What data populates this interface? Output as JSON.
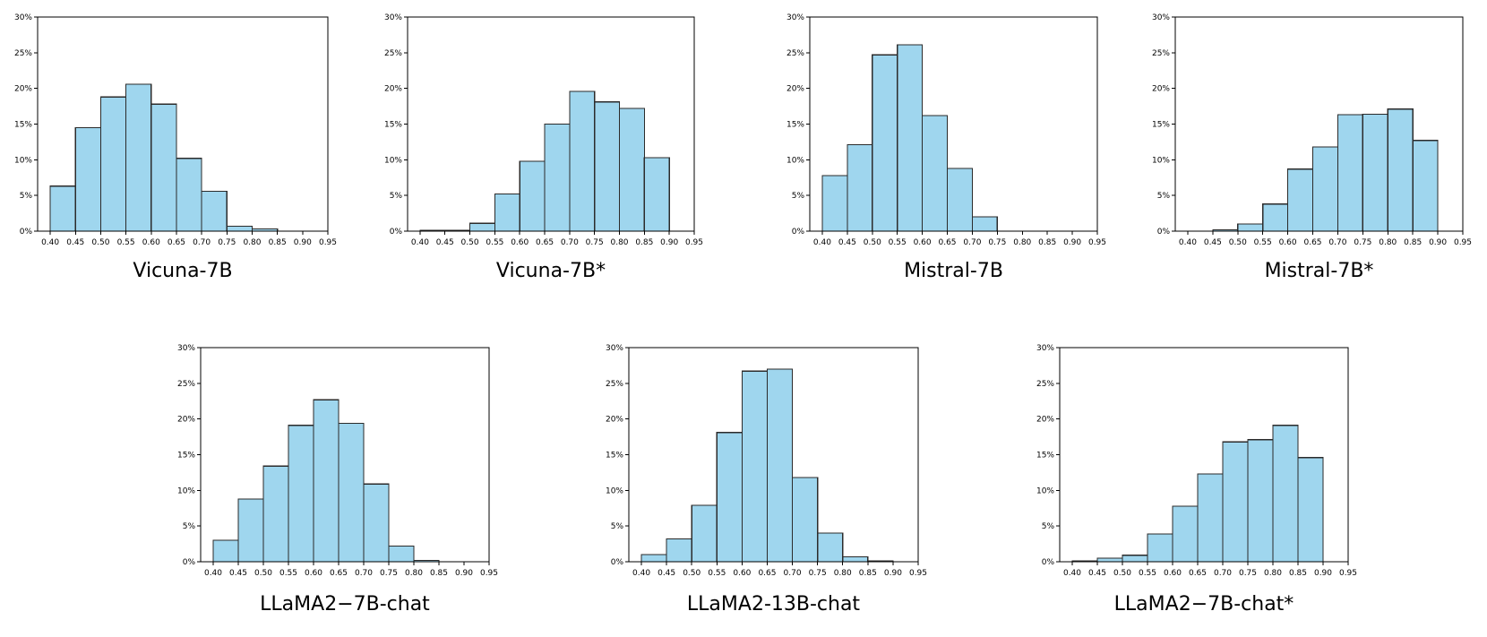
{
  "chart_data": [
    {
      "type": "bar",
      "title": "Vicuna-7B",
      "categories": [
        "0.40-0.45",
        "0.45-0.50",
        "0.50-0.55",
        "0.55-0.60",
        "0.60-0.65",
        "0.65-0.70",
        "0.70-0.75",
        "0.75-0.80",
        "0.80-0.85",
        "0.85-0.90"
      ],
      "values": [
        6.3,
        14.5,
        18.8,
        20.6,
        17.8,
        10.2,
        5.6,
        0.7,
        0.3,
        0.0
      ],
      "xticks": [
        "0.40",
        "0.45",
        "0.50",
        "0.55",
        "0.60",
        "0.65",
        "0.70",
        "0.75",
        "0.80",
        "0.85",
        "0.90",
        "0.95"
      ],
      "yticks": [
        "0%",
        "5%",
        "10%",
        "15%",
        "20%",
        "25%",
        "30%"
      ],
      "xlim": [
        0.375,
        0.95
      ],
      "ylim": [
        0,
        30
      ],
      "xlabel": "",
      "ylabel": ""
    },
    {
      "type": "bar",
      "title": "Vicuna-7B*",
      "categories": [
        "0.40-0.45",
        "0.45-0.50",
        "0.50-0.55",
        "0.55-0.60",
        "0.60-0.65",
        "0.65-0.70",
        "0.70-0.75",
        "0.75-0.80",
        "0.80-0.85",
        "0.85-0.90"
      ],
      "values": [
        0.1,
        0.1,
        1.1,
        5.2,
        9.8,
        15.0,
        19.6,
        18.1,
        17.2,
        10.3
      ],
      "xticks": [
        "0.40",
        "0.45",
        "0.50",
        "0.55",
        "0.60",
        "0.65",
        "0.70",
        "0.75",
        "0.80",
        "0.85",
        "0.90",
        "0.95"
      ],
      "yticks": [
        "0%",
        "5%",
        "10%",
        "15%",
        "20%",
        "25%",
        "30%"
      ],
      "xlim": [
        0.375,
        0.95
      ],
      "ylim": [
        0,
        30
      ],
      "xlabel": "",
      "ylabel": ""
    },
    {
      "type": "bar",
      "title": "Mistral-7B",
      "categories": [
        "0.40-0.45",
        "0.45-0.50",
        "0.50-0.55",
        "0.55-0.60",
        "0.60-0.65",
        "0.65-0.70",
        "0.70-0.75",
        "0.75-0.80",
        "0.80-0.85",
        "0.85-0.90"
      ],
      "values": [
        7.8,
        12.1,
        24.7,
        26.1,
        16.2,
        8.8,
        2.0,
        0.0,
        0.0,
        0.0
      ],
      "xticks": [
        "0.40",
        "0.45",
        "0.50",
        "0.55",
        "0.60",
        "0.65",
        "0.70",
        "0.75",
        "0.80",
        "0.85",
        "0.90",
        "0.95"
      ],
      "yticks": [
        "0%",
        "5%",
        "10%",
        "15%",
        "20%",
        "25%",
        "30%"
      ],
      "xlim": [
        0.375,
        0.95
      ],
      "ylim": [
        0,
        30
      ],
      "xlabel": "",
      "ylabel": ""
    },
    {
      "type": "bar",
      "title": "Mistral-7B*",
      "categories": [
        "0.40-0.45",
        "0.45-0.50",
        "0.50-0.55",
        "0.55-0.60",
        "0.60-0.65",
        "0.65-0.70",
        "0.70-0.75",
        "0.75-0.80",
        "0.80-0.85",
        "0.85-0.90"
      ],
      "values": [
        0.0,
        0.2,
        1.0,
        3.8,
        8.7,
        11.8,
        16.3,
        16.4,
        17.1,
        12.7
      ],
      "xticks": [
        "0.40",
        "0.45",
        "0.50",
        "0.55",
        "0.60",
        "0.65",
        "0.70",
        "0.75",
        "0.80",
        "0.85",
        "0.90",
        "0.95"
      ],
      "yticks": [
        "0%",
        "5%",
        "10%",
        "15%",
        "20%",
        "25%",
        "30%"
      ],
      "xlim": [
        0.375,
        0.95
      ],
      "ylim": [
        0,
        30
      ],
      "xlabel": "",
      "ylabel": ""
    },
    {
      "type": "bar",
      "title": "LLaMA2−7B-chat",
      "categories": [
        "0.40-0.45",
        "0.45-0.50",
        "0.50-0.55",
        "0.55-0.60",
        "0.60-0.65",
        "0.65-0.70",
        "0.70-0.75",
        "0.75-0.80",
        "0.80-0.85",
        "0.85-0.90"
      ],
      "values": [
        3.0,
        8.8,
        13.4,
        19.1,
        22.7,
        19.4,
        10.9,
        2.2,
        0.2,
        0.0
      ],
      "xticks": [
        "0.40",
        "0.45",
        "0.50",
        "0.55",
        "0.60",
        "0.65",
        "0.70",
        "0.75",
        "0.80",
        "0.85",
        "0.90",
        "0.95"
      ],
      "yticks": [
        "0%",
        "5%",
        "10%",
        "15%",
        "20%",
        "25%",
        "30%"
      ],
      "xlim": [
        0.375,
        0.95
      ],
      "ylim": [
        0,
        30
      ],
      "xlabel": "",
      "ylabel": ""
    },
    {
      "type": "bar",
      "title": "LLaMA2-13B-chat",
      "categories": [
        "0.40-0.45",
        "0.45-0.50",
        "0.50-0.55",
        "0.55-0.60",
        "0.60-0.65",
        "0.65-0.70",
        "0.70-0.75",
        "0.75-0.80",
        "0.80-0.85",
        "0.85-0.90"
      ],
      "values": [
        1.0,
        3.2,
        7.9,
        18.1,
        26.7,
        27.0,
        11.8,
        4.0,
        0.7,
        0.1
      ],
      "xticks": [
        "0.40",
        "0.45",
        "0.50",
        "0.55",
        "0.60",
        "0.65",
        "0.70",
        "0.75",
        "0.80",
        "0.85",
        "0.90",
        "0.95"
      ],
      "yticks": [
        "0%",
        "5%",
        "10%",
        "15%",
        "20%",
        "25%",
        "30%"
      ],
      "xlim": [
        0.375,
        0.95
      ],
      "ylim": [
        0,
        30
      ],
      "xlabel": "",
      "ylabel": ""
    },
    {
      "type": "bar",
      "title": "LLaMA2−7B-chat*",
      "categories": [
        "0.40-0.45",
        "0.45-0.50",
        "0.50-0.55",
        "0.55-0.60",
        "0.60-0.65",
        "0.65-0.70",
        "0.70-0.75",
        "0.75-0.80",
        "0.80-0.85",
        "0.85-0.90"
      ],
      "values": [
        0.1,
        0.5,
        0.9,
        3.9,
        7.8,
        12.3,
        16.8,
        17.1,
        19.1,
        14.6
      ],
      "xticks": [
        "0.40",
        "0.45",
        "0.50",
        "0.55",
        "0.60",
        "0.65",
        "0.70",
        "0.75",
        "0.80",
        "0.85",
        "0.90",
        "0.95"
      ],
      "yticks": [
        "0%",
        "5%",
        "10%",
        "15%",
        "20%",
        "25%",
        "30%"
      ],
      "xlim": [
        0.375,
        0.95
      ],
      "ylim": [
        0,
        30
      ],
      "xlabel": "",
      "ylabel": ""
    }
  ],
  "colors": {
    "bar_fill": "#9fd6ee",
    "bar_edge": "#2b2b2b",
    "axis": "#000000",
    "text": "#000000"
  }
}
